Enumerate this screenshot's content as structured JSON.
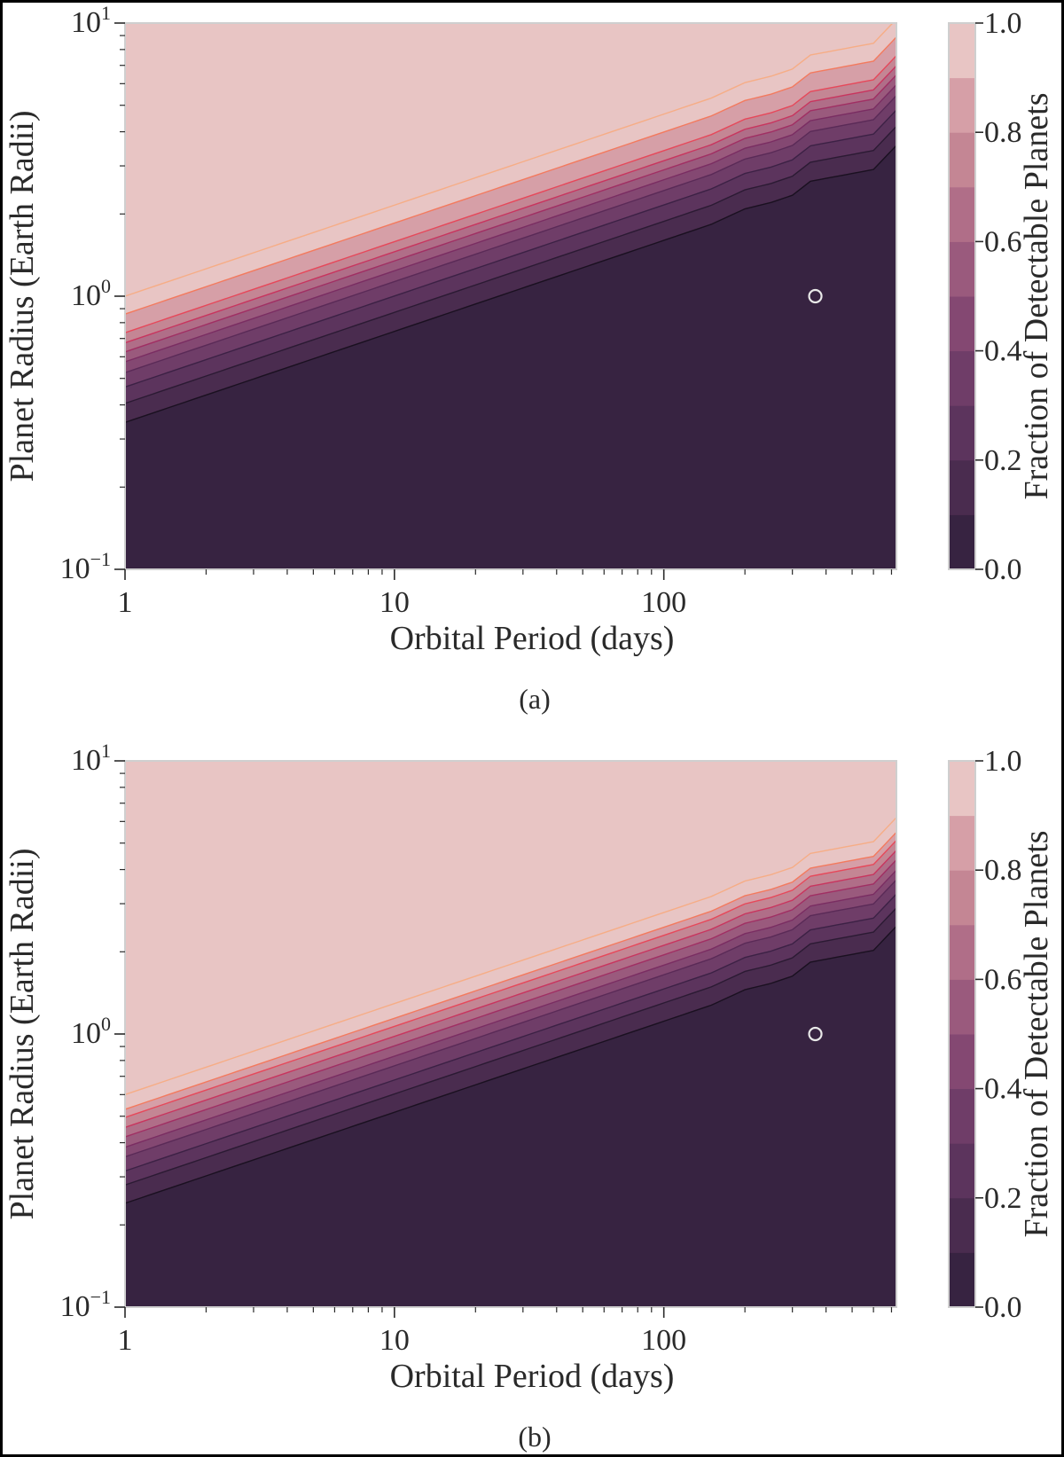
{
  "figure": {
    "colorbar_label": "Fraction of Detectable Planets",
    "palette": [
      "#372341",
      "#4a2c4f",
      "#5c345d",
      "#6f3d68",
      "#844872",
      "#9a5a7d",
      "#b06e88",
      "#c48694",
      "#d69fa7",
      "#e8c5c4"
    ],
    "contour_line_colors": [
      "#1a1020",
      "#2b1a33",
      "#3c2145",
      "#5a2a57",
      "#7a2d62",
      "#a02f63",
      "#c8355e",
      "#e6485a",
      "#f37a5e",
      "#f6ad86"
    ],
    "marker_color": "#e8e8e8"
  },
  "chart_data": [
    {
      "type": "heatmap",
      "subtype": "filled-contour",
      "caption": "(a)",
      "xlabel": "Orbital Period (days)",
      "ylabel": "Planet Radius (Earth Radii)",
      "xscale": "log",
      "yscale": "log",
      "xlim": [
        1,
        730
      ],
      "ylim": [
        0.1,
        10
      ],
      "xticks": [
        {
          "value": 1,
          "label": "1"
        },
        {
          "value": 10,
          "label": "10"
        },
        {
          "value": 100,
          "label": "100"
        }
      ],
      "yticks": [
        {
          "value": 0.1,
          "base": "10",
          "exp": "−1"
        },
        {
          "value": 1,
          "base": "10",
          "exp": "0"
        },
        {
          "value": 10,
          "base": "10",
          "exp": "1"
        }
      ],
      "colorbar": {
        "range": [
          0,
          1
        ],
        "levels": [
          0,
          0.1,
          0.2,
          0.3,
          0.4,
          0.5,
          0.6,
          0.7,
          0.8,
          0.9,
          1.0
        ],
        "ticks": [
          "0.0",
          "0.2",
          "0.4",
          "0.6",
          "0.8",
          "1.0"
        ]
      },
      "level_radius_at_1_day": [
        0.345,
        0.405,
        0.465,
        0.525,
        0.575,
        0.625,
        0.675,
        0.735,
        0.86,
        1.0
      ],
      "period_slope": 0.3333,
      "contour_period_nodes": [
        1,
        150,
        200,
        250,
        300,
        350,
        600,
        730
      ],
      "contour_offset_dex": [
        0,
        0,
        0.015,
        0.006,
        0.006,
        0.035,
        0,
        0.06
      ],
      "marker": {
        "period": 365,
        "radius": 1.0
      }
    },
    {
      "type": "heatmap",
      "subtype": "filled-contour",
      "caption": "(b)",
      "xlabel": "Orbital Period (days)",
      "ylabel": "Planet Radius (Earth Radii)",
      "xscale": "log",
      "yscale": "log",
      "xlim": [
        1,
        730
      ],
      "ylim": [
        0.1,
        10
      ],
      "xticks": [
        {
          "value": 1,
          "label": "1"
        },
        {
          "value": 10,
          "label": "10"
        },
        {
          "value": 100,
          "label": "100"
        }
      ],
      "yticks": [
        {
          "value": 0.1,
          "base": "10",
          "exp": "−1"
        },
        {
          "value": 1,
          "base": "10",
          "exp": "0"
        },
        {
          "value": 10,
          "base": "10",
          "exp": "1"
        }
      ],
      "colorbar": {
        "range": [
          0,
          1
        ],
        "levels": [
          0,
          0.1,
          0.2,
          0.3,
          0.4,
          0.5,
          0.6,
          0.7,
          0.8,
          0.9,
          1.0
        ],
        "ticks": [
          "0.0",
          "0.2",
          "0.4",
          "0.6",
          "0.8",
          "1.0"
        ]
      },
      "level_radius_at_1_day": [
        0.24,
        0.28,
        0.315,
        0.355,
        0.385,
        0.42,
        0.455,
        0.495,
        0.53,
        0.6
      ],
      "period_slope": 0.3333,
      "contour_period_nodes": [
        1,
        150,
        200,
        250,
        300,
        350,
        600,
        730
      ],
      "contour_offset_dex": [
        0,
        0,
        0.015,
        0.006,
        0.006,
        0.035,
        0,
        0.06
      ],
      "marker": {
        "period": 365,
        "radius": 1.0
      }
    }
  ]
}
